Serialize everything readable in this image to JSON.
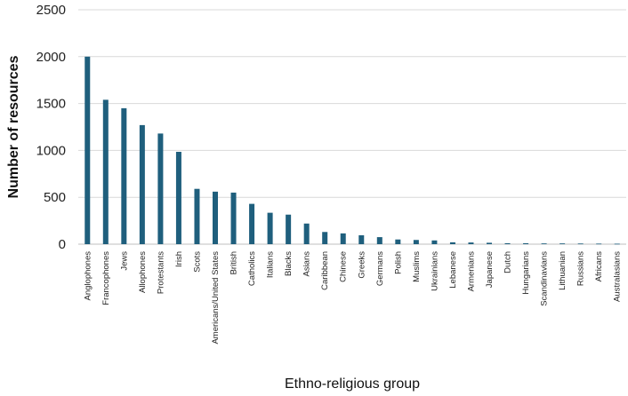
{
  "chart_data": {
    "type": "bar",
    "title": "",
    "xlabel": "Ethno-religious group",
    "ylabel": "Number of resources",
    "ylim": [
      0,
      2500
    ],
    "yticks": [
      0,
      500,
      1000,
      1500,
      2000,
      2500
    ],
    "grid": true,
    "bar_color": "#1f5f7d",
    "categories": [
      "Anglophones",
      "Francophones",
      "Jews",
      "Allophones",
      "Protestants",
      "Irish",
      "Scots",
      "Americans/United States",
      "British",
      "Catholics",
      "Italians",
      "Blacks",
      "Asians",
      "Caribbean",
      "Chinese",
      "Greeks",
      "Germans",
      "Polish",
      "Muslims",
      "Ukrainians",
      "Lebanese",
      "Armenians",
      "Japanese",
      "Dutch",
      "Hungarians",
      "Scandinavians",
      "Lithuanian",
      "Russians",
      "Africans",
      "Australasians"
    ],
    "values": [
      2000,
      1540,
      1450,
      1270,
      1180,
      985,
      590,
      560,
      550,
      430,
      335,
      315,
      220,
      130,
      115,
      95,
      75,
      50,
      45,
      40,
      20,
      18,
      15,
      10,
      10,
      8,
      8,
      7,
      6,
      5
    ]
  }
}
